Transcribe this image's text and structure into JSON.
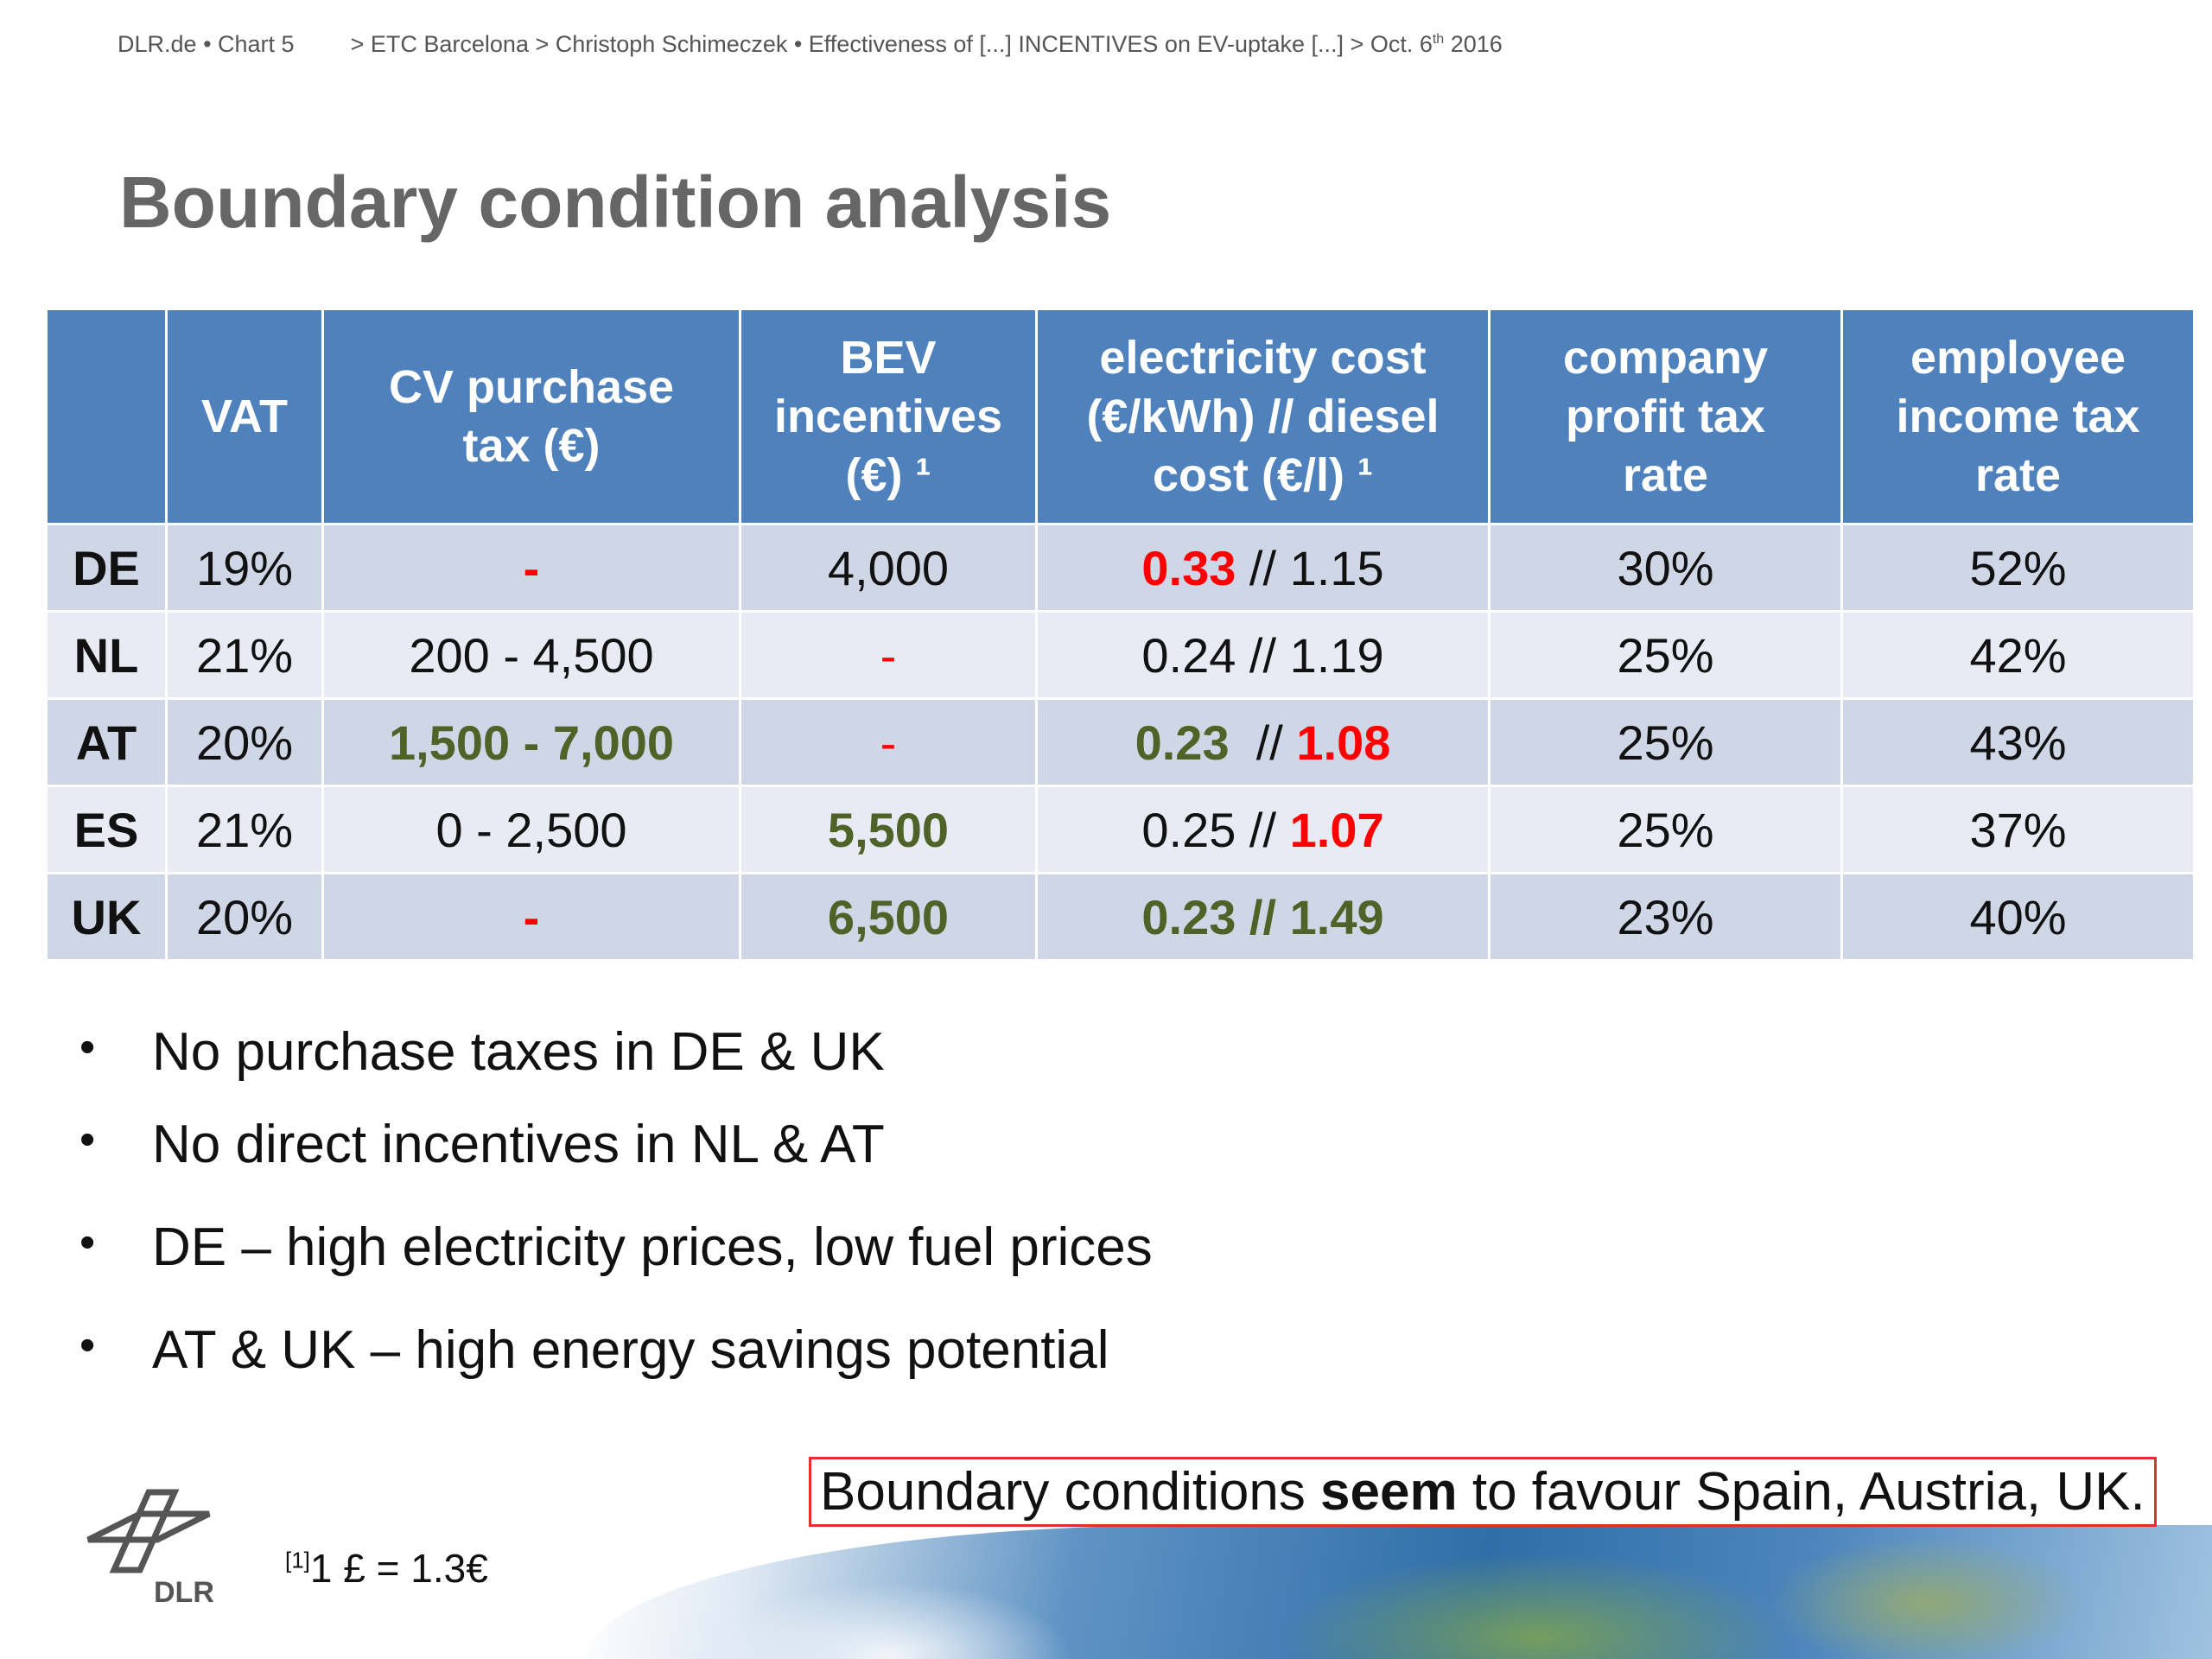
{
  "header": {
    "site": "DLR.de",
    "bullet": "•",
    "chart": "Chart 5",
    "breadcrumb": "> ETC Barcelona > Christoph Schimeczek  • Effectiveness of [...] INCENTIVES on EV-uptake [...] > Oct. 6",
    "date_sup": "th",
    "year": " 2016"
  },
  "title": "Boundary condition analysis",
  "table": {
    "headers": {
      "country": "",
      "vat": "VAT",
      "cv_tax_1": "CV purchase",
      "cv_tax_2": "tax (€)",
      "bev_1": "BEV",
      "bev_2": "incentives",
      "bev_3": "(€) ¹",
      "elec_1": "electricity cost",
      "elec_2": "(€/kWh) // diesel",
      "elec_3": "cost (€/l) ¹",
      "profit_1": "company",
      "profit_2": "profit tax",
      "profit_3": "rate",
      "income_1": "employee",
      "income_2": "income tax",
      "income_3": "rate"
    },
    "rows": [
      {
        "country": "DE",
        "vat": "19%",
        "cv_tax": "-",
        "bev": "4,000",
        "elec": "0.33",
        "sep": " // ",
        "diesel": "1.15",
        "profit": "30%",
        "income": "52%"
      },
      {
        "country": "NL",
        "vat": "21%",
        "cv_tax": "200 - 4,500",
        "bev": "-",
        "elec": "0.24",
        "sep": " // ",
        "diesel": "1.19",
        "profit": "25%",
        "income": "42%"
      },
      {
        "country": "AT",
        "vat": "20%",
        "cv_tax": "1,500 - 7,000",
        "bev": "-",
        "elec": "0.23",
        "sep": "  // ",
        "diesel": "1.08",
        "profit": "25%",
        "income": "43%"
      },
      {
        "country": "ES",
        "vat": "21%",
        "cv_tax": "0 - 2,500",
        "bev": "5,500",
        "elec": "0.25",
        "sep": " // ",
        "diesel": "1.07",
        "profit": "25%",
        "income": "37%"
      },
      {
        "country": "UK",
        "vat": "20%",
        "cv_tax": "-",
        "bev": "6,500",
        "elec": "0.23",
        "sep": " // ",
        "diesel": "1.49",
        "profit": "23%",
        "income": "40%"
      }
    ]
  },
  "bullets": [
    "No purchase taxes in DE & UK",
    "No direct incentives in NL & AT",
    "DE – high electricity prices, low fuel prices",
    "AT & UK – high energy savings potential"
  ],
  "callout": {
    "pre": "Boundary conditions ",
    "bold": "seem",
    "post": " to favour Spain, Austria, UK."
  },
  "footnote": {
    "marker": "[1]",
    "text": "1 £ = 1.3€"
  },
  "logo": {
    "text": "DLR",
    "icon": "dlr-logo-icon"
  },
  "colors": {
    "header_bg": "#4f81bd",
    "row_odd": "#cfd6e6",
    "row_even": "#e8ebf3",
    "highlight_red": "#ff0000",
    "highlight_green": "#4f6228",
    "callout_border": "#e0302a",
    "title": "#666666"
  }
}
